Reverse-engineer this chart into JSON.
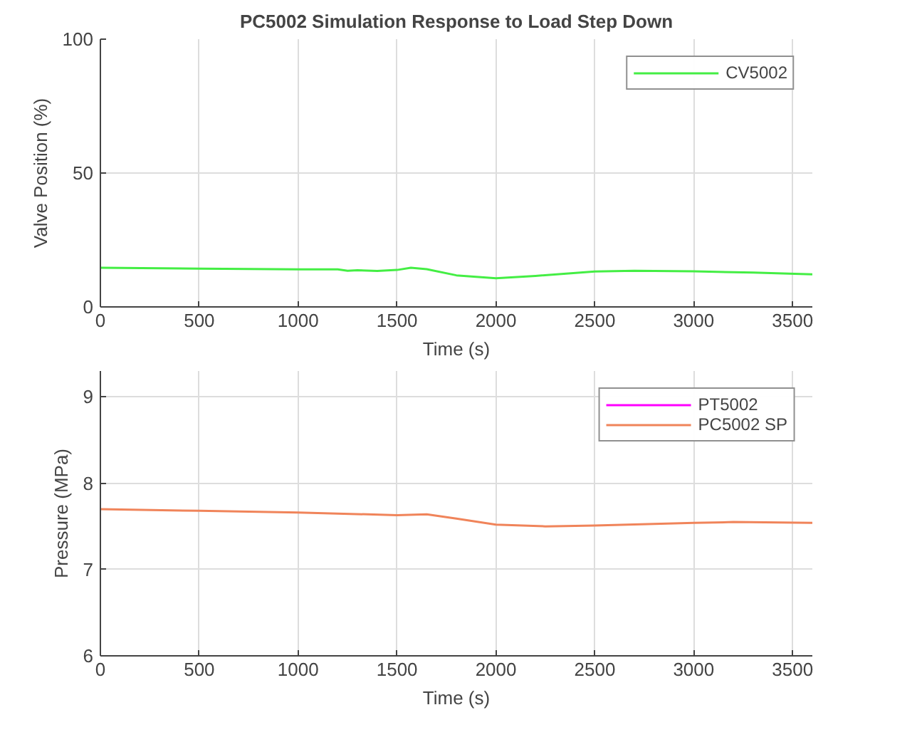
{
  "chart_data": [
    {
      "type": "line",
      "title": "PC5002 Simulation Response to Load Step Down",
      "xlabel": "Time (s)",
      "ylabel": "Valve Position (%)",
      "x": [
        0,
        500,
        1000,
        1200,
        1250,
        1300,
        1400,
        1500,
        1570,
        1650,
        1800,
        2000,
        2200,
        2500,
        2700,
        3000,
        3300,
        3600
      ],
      "series": [
        {
          "name": "CV5002",
          "color": "#44ee44",
          "values": [
            14.6,
            14.3,
            14.0,
            14.0,
            13.5,
            13.7,
            13.4,
            13.8,
            14.6,
            14.1,
            11.8,
            10.7,
            11.6,
            13.2,
            13.5,
            13.3,
            12.8,
            12.2
          ]
        }
      ],
      "xlim": [
        0,
        3600
      ],
      "xticks": [
        0,
        500,
        1000,
        1500,
        2000,
        2500,
        3000,
        3500
      ],
      "ylim": [
        0,
        100
      ],
      "yticks": [
        0,
        50,
        100
      ],
      "grid": true,
      "legend": "top right"
    },
    {
      "type": "line",
      "xlabel": "Time (s)",
      "ylabel": "Pressure (MPa)",
      "x": [
        0,
        500,
        1000,
        1500,
        1650,
        1800,
        2000,
        2250,
        2500,
        3000,
        3200,
        3600
      ],
      "series": [
        {
          "name": "PT5002",
          "color": "#ff00ff",
          "values": [
            null,
            null,
            null,
            null,
            null,
            null,
            null,
            null,
            null,
            null,
            null,
            null
          ]
        },
        {
          "name": "PC5002 SP",
          "color": "#f0845a",
          "values": [
            7.7,
            7.68,
            7.66,
            7.63,
            7.64,
            7.59,
            7.52,
            7.5,
            7.51,
            7.54,
            7.55,
            7.54
          ]
        }
      ],
      "xlim": [
        0,
        3600
      ],
      "xticks": [
        0,
        500,
        1000,
        1500,
        2000,
        2500,
        3000,
        3500
      ],
      "ylim": [
        6,
        9.3
      ],
      "yticks": [
        6,
        7,
        8,
        9
      ],
      "grid": true,
      "legend": "top right"
    }
  ]
}
